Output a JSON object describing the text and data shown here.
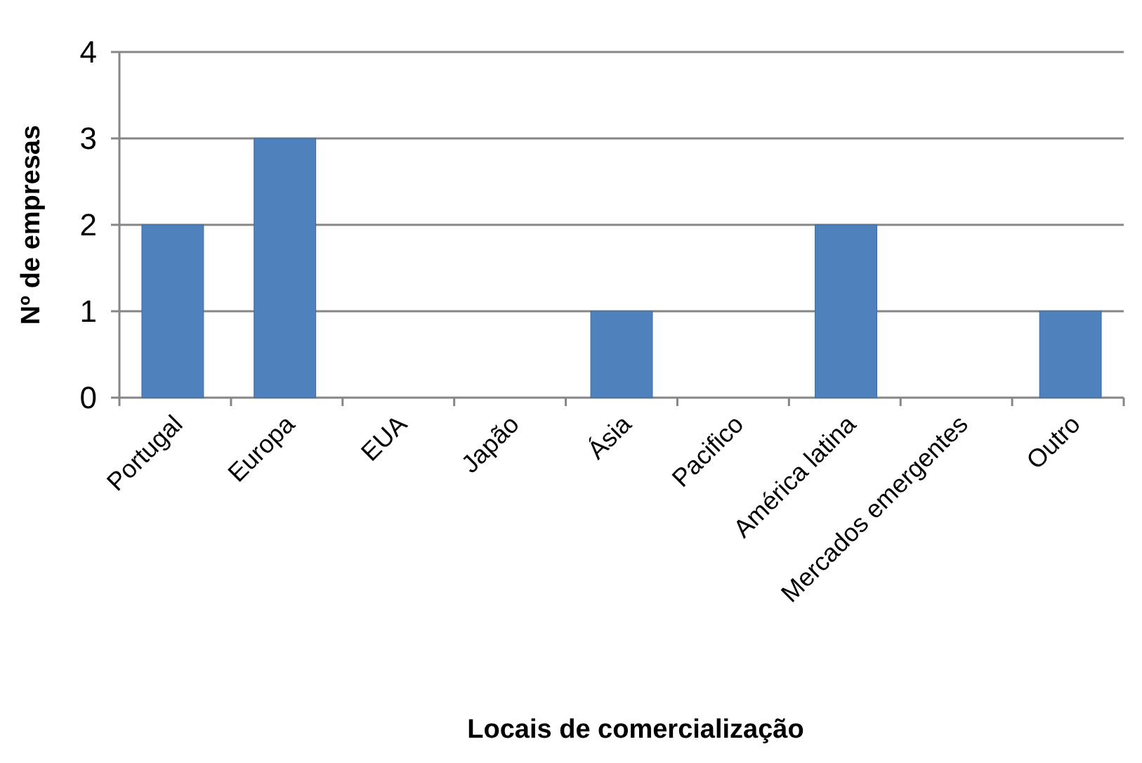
{
  "chart_data": {
    "type": "bar",
    "xlabel": "Locais de comercialização",
    "ylabel": "Nº de empresas",
    "categories": [
      "Portugal",
      "Europa",
      "EUA",
      "Japão",
      "Ásia",
      "Pacifico",
      "América latina",
      "Mercados emergentes",
      "Outro"
    ],
    "values": [
      2,
      3,
      0,
      0,
      1,
      0,
      2,
      0,
      1
    ],
    "color": "#4f81bd",
    "ylim": [
      0,
      4
    ],
    "yticks": [
      0,
      1,
      2,
      3,
      4
    ],
    "grid": "y"
  }
}
